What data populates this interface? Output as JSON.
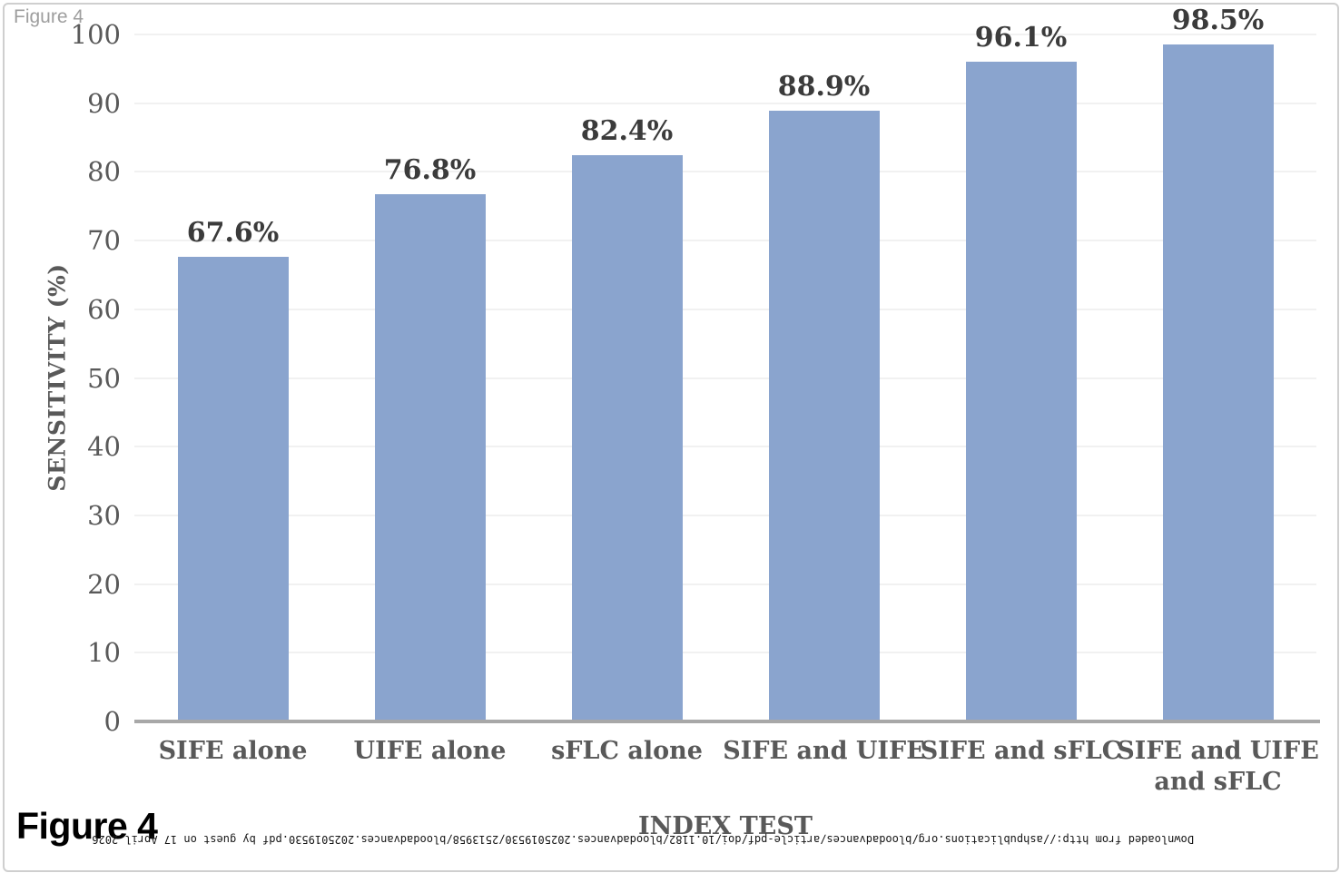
{
  "figure": {
    "header_label": "Figure 4",
    "caption_label": "Figure 4",
    "watermark": "Downloaded from http://ashpublications.org/bloodadvances/article-pdf/doi/10.1182/bloodadvances.2025019530/2513958/bloodadvances.2025019530.pdf by guest on 17 April 2026"
  },
  "chart_data": {
    "type": "bar",
    "title": "",
    "xlabel": "INDEX TEST",
    "ylabel": "SENSITIVITY (%)",
    "categories": [
      "SIFE alone",
      "UIFE alone",
      "sFLC alone",
      "SIFE and UIFE",
      "SIFE and sFLC",
      "SIFE and UIFE and sFLC"
    ],
    "values": [
      67.6,
      76.8,
      82.4,
      88.9,
      96.1,
      98.5
    ],
    "data_labels": [
      "67.6%",
      "76.8%",
      "82.4%",
      "88.9%",
      "96.1%",
      "98.5%"
    ],
    "ylim": [
      0,
      100
    ],
    "ytick_interval": 10,
    "yticks": [
      0,
      10,
      20,
      30,
      40,
      50,
      60,
      70,
      80,
      90,
      100
    ],
    "grid": true,
    "legend_position": "none",
    "bar_color": "#8AA4CE",
    "colors": {
      "gridline": "#F1F1F1",
      "axis_line": "#A8A8A8",
      "tick_label": "#595959",
      "category_label": "#595959",
      "data_label": "#3B3B3B",
      "axis_title": "#595959"
    }
  }
}
